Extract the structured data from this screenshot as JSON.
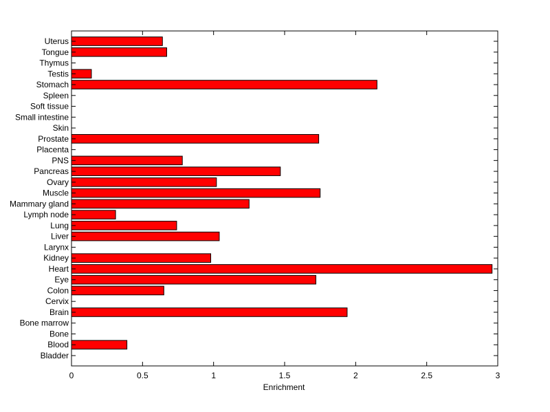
{
  "chart_data": {
    "type": "bar",
    "orientation": "horizontal",
    "title": "",
    "xlabel": "Enrichment",
    "ylabel": "",
    "xlim": [
      0,
      3
    ],
    "xticks": [
      "0",
      "0.5",
      "1",
      "1.5",
      "2",
      "2.5",
      "3"
    ],
    "grid": false,
    "legend": "none",
    "bar_color": "#ff0000",
    "bar_edge_color": "#000000",
    "categories": [
      "Bladder",
      "Blood",
      "Bone",
      "Bone marrow",
      "Brain",
      "Cervix",
      "Colon",
      "Eye",
      "Heart",
      "Kidney",
      "Larynx",
      "Liver",
      "Lung",
      "Lymph node",
      "Mammary gland",
      "Muscle",
      "Ovary",
      "Pancreas",
      "PNS",
      "Placenta",
      "Prostate",
      "Skin",
      "Small intestine",
      "Soft tissue",
      "Spleen",
      "Stomach",
      "Testis",
      "Thymus",
      "Tongue",
      "Uterus"
    ],
    "values": [
      0,
      0.39,
      0,
      0,
      1.94,
      0,
      0.65,
      1.72,
      2.96,
      0.98,
      0,
      1.04,
      0.74,
      0.31,
      1.25,
      1.75,
      1.02,
      1.47,
      0.78,
      0,
      1.74,
      0,
      0,
      0,
      0,
      2.15,
      0.14,
      0,
      0.67,
      0.64
    ]
  }
}
